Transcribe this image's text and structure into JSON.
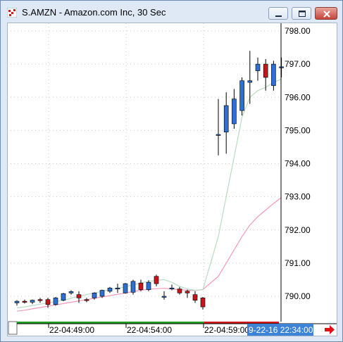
{
  "window": {
    "title": "S.AMZN - Amazon.com Inc, 30 Sec"
  },
  "colors": {
    "up_candle": "#2d6fd2",
    "down_candle": "#c8151b",
    "ma_fast": "#b9dcc1",
    "ma_slow": "#f099b6",
    "crosshair": "#3c9ad0",
    "timeline_green": "#21a021",
    "timeline_red": "#d11a1a",
    "highlight_label_bg": "#3e84d6"
  },
  "axis": {
    "y_labels": [
      "798.00",
      "797.00",
      "796.00",
      "795.00",
      "794.00",
      "793.00",
      "792.00",
      "791.00",
      "790.00"
    ],
    "x_labels": [
      "22-04:49:00",
      "22-04:54:00",
      "22-04:59:00"
    ],
    "crosshair_time_label": "9-22-16 22:34:00"
  },
  "chart_data": {
    "type": "candlestick",
    "ylim": [
      789.5,
      798.0
    ],
    "y_ticks": [
      790,
      791,
      792,
      793,
      794,
      795,
      796,
      797,
      798
    ],
    "x_tick_labels": [
      "22-04:49:00",
      "22-04:54:00",
      "22-04:59:00"
    ],
    "candles": [
      {
        "o": 789.8,
        "h": 789.88,
        "l": 789.72,
        "c": 789.85,
        "dir": "up"
      },
      {
        "o": 789.85,
        "h": 789.9,
        "l": 789.78,
        "c": 789.82,
        "dir": "down"
      },
      {
        "o": 789.82,
        "h": 789.9,
        "l": 789.76,
        "c": 789.88,
        "dir": "up"
      },
      {
        "o": 789.88,
        "h": 789.95,
        "l": 789.8,
        "c": 789.9,
        "dir": "down"
      },
      {
        "o": 789.9,
        "h": 789.95,
        "l": 789.65,
        "c": 789.75,
        "dir": "down"
      },
      {
        "o": 789.75,
        "h": 789.98,
        "l": 789.72,
        "c": 789.95,
        "dir": "up"
      },
      {
        "o": 789.88,
        "h": 790.1,
        "l": 789.85,
        "c": 790.08,
        "dir": "up"
      },
      {
        "o": 790.1,
        "h": 790.18,
        "l": 790.05,
        "c": 790.14,
        "dir": "up"
      },
      {
        "o": 790.05,
        "h": 790.15,
        "l": 789.8,
        "c": 789.95,
        "dir": "down"
      },
      {
        "o": 789.9,
        "h": 789.95,
        "l": 789.82,
        "c": 789.88,
        "dir": "down"
      },
      {
        "o": 789.95,
        "h": 790.12,
        "l": 789.9,
        "c": 790.1,
        "dir": "up"
      },
      {
        "o": 790.0,
        "h": 790.2,
        "l": 789.95,
        "c": 790.18,
        "dir": "up"
      },
      {
        "o": 790.15,
        "h": 790.28,
        "l": 790.1,
        "c": 790.25,
        "dir": "up"
      },
      {
        "o": 790.25,
        "h": 790.38,
        "l": 790.1,
        "c": 790.22,
        "dir": "up"
      },
      {
        "o": 790.1,
        "h": 790.4,
        "l": 790.08,
        "c": 790.38,
        "dir": "up"
      },
      {
        "o": 790.12,
        "h": 790.5,
        "l": 790.05,
        "c": 790.45,
        "dir": "up"
      },
      {
        "o": 790.4,
        "h": 790.5,
        "l": 790.15,
        "c": 790.2,
        "dir": "down"
      },
      {
        "o": 790.2,
        "h": 790.48,
        "l": 790.15,
        "c": 790.42,
        "dir": "up"
      },
      {
        "o": 790.6,
        "h": 790.65,
        "l": 790.3,
        "c": 790.38,
        "dir": "down"
      },
      {
        "o": 789.98,
        "h": 790.15,
        "l": 789.9,
        "c": 790.0,
        "dir": "up"
      },
      {
        "o": 790.25,
        "h": 790.35,
        "l": 790.18,
        "c": 790.22,
        "dir": "up"
      },
      {
        "o": 790.22,
        "h": 790.28,
        "l": 790.05,
        "c": 790.1,
        "dir": "down"
      },
      {
        "o": 790.15,
        "h": 790.2,
        "l": 789.95,
        "c": 790.1,
        "dir": "down"
      },
      {
        "o": 790.05,
        "h": 790.15,
        "l": 789.8,
        "c": 789.88,
        "dir": "down"
      },
      {
        "o": 789.95,
        "h": 789.98,
        "l": 789.6,
        "c": 789.68,
        "dir": "down"
      },
      {
        "o": 794.85,
        "h": 795.95,
        "l": 794.25,
        "c": 794.88,
        "dir": "up"
      },
      {
        "o": 794.95,
        "h": 796.15,
        "l": 794.3,
        "c": 795.75,
        "dir": "up"
      },
      {
        "o": 795.2,
        "h": 796.25,
        "l": 795.05,
        "c": 795.95,
        "dir": "up"
      },
      {
        "o": 795.6,
        "h": 796.6,
        "l": 795.45,
        "c": 796.5,
        "dir": "up"
      },
      {
        "o": 796.45,
        "h": 797.4,
        "l": 795.8,
        "c": 796.5,
        "dir": "up"
      },
      {
        "o": 796.8,
        "h": 797.2,
        "l": 796.5,
        "c": 797.0,
        "dir": "up"
      },
      {
        "o": 797.0,
        "h": 797.15,
        "l": 796.2,
        "c": 796.6,
        "dir": "down"
      },
      {
        "o": 796.35,
        "h": 797.1,
        "l": 796.2,
        "c": 797.0,
        "dir": "up"
      },
      {
        "o": 796.9,
        "h": 797.2,
        "l": 796.6,
        "c": 796.92,
        "dir": "up"
      }
    ],
    "ma_fast": [
      789.65,
      789.68,
      789.72,
      789.76,
      789.8,
      789.84,
      789.88,
      789.94,
      790.0,
      790.05,
      790.1,
      790.15,
      790.2,
      790.24,
      790.28,
      790.35,
      790.4,
      790.45,
      790.48,
      790.5,
      790.42,
      790.3,
      790.22,
      790.18,
      790.2,
      791.8,
      793.0,
      794.2,
      795.4,
      796.0,
      796.2,
      796.3,
      796.45,
      796.55
    ],
    "ma_slow": [
      789.55,
      789.58,
      789.62,
      789.66,
      789.7,
      789.74,
      789.78,
      789.82,
      789.86,
      789.9,
      789.94,
      789.98,
      790.02,
      790.06,
      790.1,
      790.14,
      790.18,
      790.21,
      790.23,
      790.24,
      790.22,
      790.2,
      790.18,
      790.17,
      790.2,
      790.6,
      791.0,
      791.4,
      791.8,
      792.15,
      792.4,
      792.6,
      792.8,
      792.98
    ],
    "grid": true
  }
}
